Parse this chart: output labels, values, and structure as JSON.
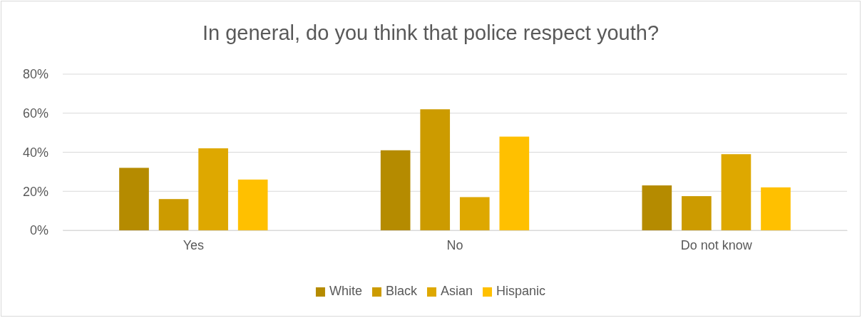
{
  "chart_data": {
    "type": "bar",
    "title": "In general, do you think that police respect youth?",
    "categories": [
      "Yes",
      "No",
      "Do not know"
    ],
    "series": [
      {
        "name": "White",
        "color": "#b58b00",
        "values": [
          32,
          41,
          23
        ]
      },
      {
        "name": "Black",
        "color": "#cc9b00",
        "values": [
          16,
          62,
          17.5
        ]
      },
      {
        "name": "Asian",
        "color": "#dea800",
        "values": [
          42,
          17,
          39
        ]
      },
      {
        "name": "Hispanic",
        "color": "#ffc000",
        "values": [
          26,
          48,
          22
        ]
      }
    ],
    "ylim": [
      0,
      80
    ],
    "yticks": [
      {
        "value": 0,
        "label": "0%"
      },
      {
        "value": 20,
        "label": "20%"
      },
      {
        "value": 40,
        "label": "40%"
      },
      {
        "value": 60,
        "label": "60%"
      },
      {
        "value": 80,
        "label": "80%"
      }
    ],
    "grid": "y",
    "legend": "bottom"
  }
}
